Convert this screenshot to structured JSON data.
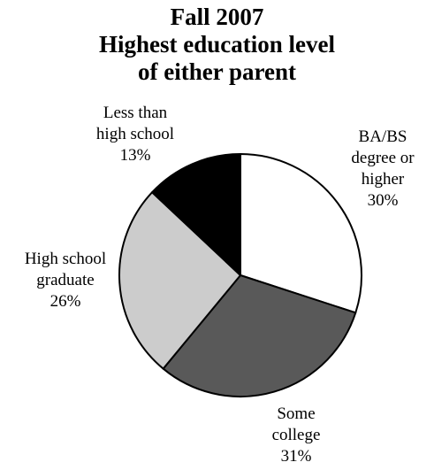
{
  "chart_data": {
    "type": "pie",
    "title_lines": [
      "Fall 2007",
      "Highest education level",
      "of either parent"
    ],
    "slices": [
      {
        "label_lines": [
          "BA/BS",
          "degree or",
          "higher"
        ],
        "percent_label": "30%",
        "value": 30,
        "color": "#ffffff"
      },
      {
        "label_lines": [
          "Some",
          "college"
        ],
        "percent_label": "31%",
        "value": 31,
        "color": "#595959"
      },
      {
        "label_lines": [
          "High school",
          "graduate"
        ],
        "percent_label": "26%",
        "value": 26,
        "color": "#cccccc"
      },
      {
        "label_lines": [
          "Less than",
          "high school"
        ],
        "percent_label": "13%",
        "value": 13,
        "color": "#000000"
      }
    ],
    "start_angle_deg": 0,
    "direction": "clockwise",
    "border_color": "#000000"
  }
}
